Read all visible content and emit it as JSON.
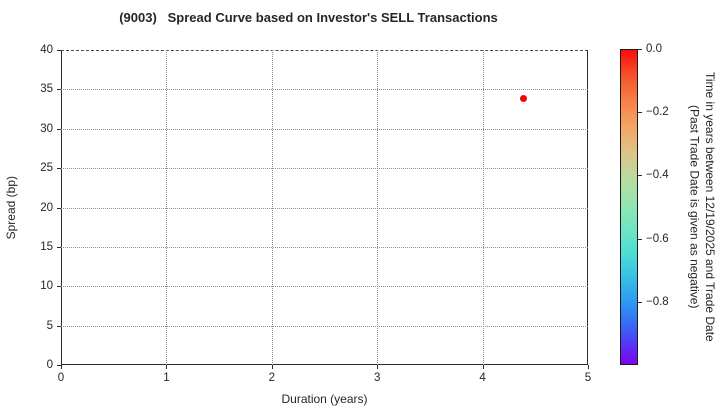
{
  "chart_data": {
    "type": "scatter",
    "title": "(9003)   Spread Curve based on Investor's SELL Transactions",
    "xlabel": "Duration (years)",
    "ylabel": "Spread (bp)",
    "xlim": [
      0,
      5
    ],
    "ylim": [
      0,
      40
    ],
    "xticks": [
      0,
      1,
      2,
      3,
      4,
      5
    ],
    "yticks": [
      0,
      5,
      10,
      15,
      20,
      25,
      30,
      35,
      40
    ],
    "grid": true,
    "grid_style": "dotted",
    "points": [
      {
        "x": 4.39,
        "y": 33.9,
        "time_value": 0.0,
        "color": "#ff0000"
      }
    ],
    "colorbar": {
      "label_line1": "Time in years between 12/19/2025 and Trade Date",
      "label_line2": "(Past Trade Date is given as negative)",
      "range": [
        0.0,
        -1.0
      ],
      "colormap": "rainbow",
      "ticks": [
        {
          "value": 0.0,
          "label": "0.0"
        },
        {
          "value": -0.2,
          "label": "−0.2"
        },
        {
          "value": -0.4,
          "label": "−0.4"
        },
        {
          "value": -0.6,
          "label": "−0.6"
        },
        {
          "value": -0.8,
          "label": "−0.8"
        }
      ],
      "gradient_stops": [
        {
          "color": "#fa0d0d",
          "pos": 0
        },
        {
          "color": "#f4512a",
          "pos": 8
        },
        {
          "color": "#f77f48",
          "pos": 16
        },
        {
          "color": "#f3a769",
          "pos": 25
        },
        {
          "color": "#dcc489",
          "pos": 33
        },
        {
          "color": "#b9dba1",
          "pos": 41
        },
        {
          "color": "#93e5b0",
          "pos": 49
        },
        {
          "color": "#6fe6c3",
          "pos": 57
        },
        {
          "color": "#4bdcd6",
          "pos": 65
        },
        {
          "color": "#36bde7",
          "pos": 73
        },
        {
          "color": "#2f94f3",
          "pos": 81
        },
        {
          "color": "#3b5ef8",
          "pos": 89
        },
        {
          "color": "#5c2bf7",
          "pos": 95
        },
        {
          "color": "#7a05f2",
          "pos": 100
        }
      ]
    },
    "spine_color": "#2b2b2b",
    "grid_color": "#8f8f8f"
  }
}
